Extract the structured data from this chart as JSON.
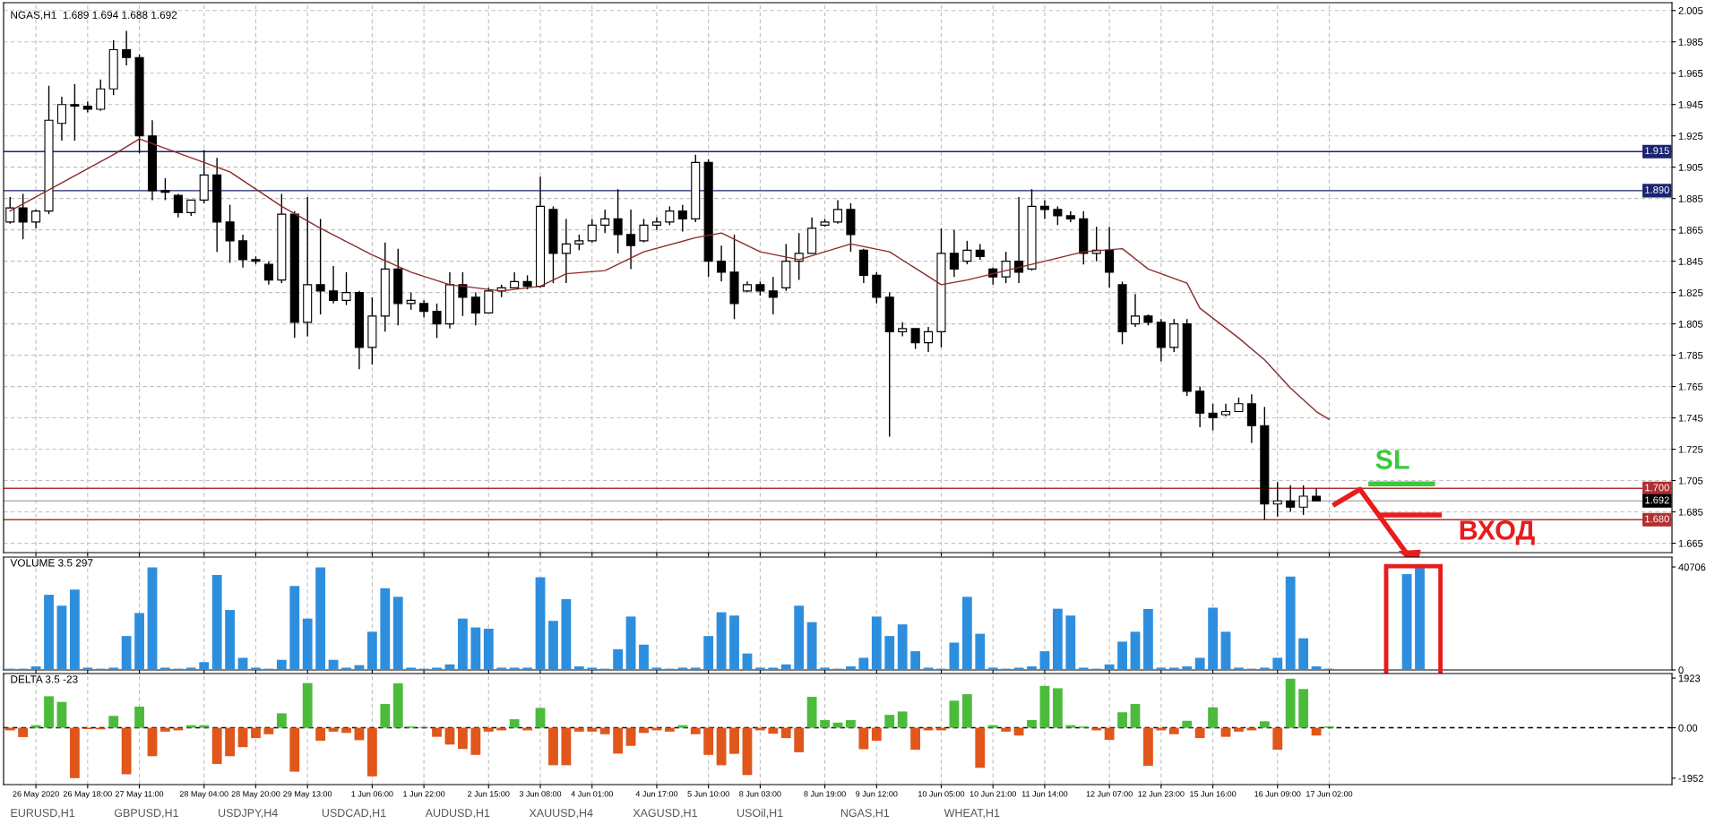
{
  "chart_data": [
    {
      "type": "candlestick",
      "title": "NGAS,H1  1.689 1.694 1.688 1.692",
      "categories": [
        null,
        null,
        null,
        null,
        null,
        null,
        null,
        null,
        null,
        null,
        null,
        null,
        null,
        null,
        null,
        null,
        null,
        null,
        null,
        null,
        null,
        null,
        null,
        null,
        null,
        null,
        null,
        null,
        null,
        null,
        null,
        null,
        null,
        null,
        null,
        null,
        null,
        null,
        null,
        null,
        null,
        null,
        null,
        null,
        null,
        null,
        null,
        null,
        null,
        null,
        null,
        null,
        null,
        null,
        null,
        null,
        null,
        null,
        null,
        null,
        null,
        null,
        null,
        null,
        null,
        null,
        null,
        null,
        null,
        null,
        null,
        null,
        null,
        null,
        null,
        null,
        null,
        null,
        null,
        null,
        null,
        null,
        null,
        null,
        null,
        null,
        null,
        null,
        null,
        null,
        null,
        null,
        null,
        null,
        null,
        null,
        null,
        null,
        null,
        null,
        null,
        null,
        null,
        null,
        null,
        null,
        null,
        null,
        null,
        null,
        null,
        null,
        null,
        null,
        null,
        null,
        null,
        null,
        null,
        null,
        null,
        null,
        null,
        null,
        null,
        null,
        null,
        null,
        null
      ],
      "ohlc": [
        [
          1.87,
          1.886,
          1.869,
          1.879
        ],
        [
          1.879,
          1.888,
          1.859,
          1.87
        ],
        [
          1.87,
          1.878,
          1.866,
          1.877
        ],
        [
          1.877,
          1.957,
          1.875,
          1.935
        ],
        [
          1.933,
          1.95,
          1.922,
          1.945
        ],
        [
          1.945,
          1.958,
          1.922,
          1.944
        ],
        [
          1.944,
          1.947,
          1.94,
          1.942
        ],
        [
          1.942,
          1.961,
          1.941,
          1.955
        ],
        [
          1.955,
          1.986,
          1.951,
          1.98
        ],
        [
          1.98,
          1.992,
          1.97,
          1.975
        ],
        [
          1.975,
          1.977,
          1.914,
          1.925
        ],
        [
          1.925,
          1.935,
          1.884,
          1.89
        ],
        [
          1.89,
          1.898,
          1.884,
          1.889
        ],
        [
          1.887,
          1.888,
          1.873,
          1.876
        ],
        [
          1.876,
          1.884,
          1.874,
          1.884
        ],
        [
          1.884,
          1.916,
          1.882,
          1.9
        ],
        [
          1.9,
          1.911,
          1.851,
          1.87
        ],
        [
          1.87,
          1.881,
          1.844,
          1.858
        ],
        [
          1.858,
          1.862,
          1.841,
          1.846
        ],
        [
          1.846,
          1.848,
          1.843,
          1.845
        ],
        [
          1.843,
          1.845,
          1.83,
          1.833
        ],
        [
          1.833,
          1.888,
          1.831,
          1.875
        ],
        [
          1.875,
          1.877,
          1.796,
          1.806
        ],
        [
          1.806,
          1.886,
          1.797,
          1.83
        ],
        [
          1.83,
          1.872,
          1.811,
          1.826
        ],
        [
          1.826,
          1.842,
          1.818,
          1.82
        ],
        [
          1.82,
          1.838,
          1.817,
          1.825
        ],
        [
          1.825,
          1.826,
          1.776,
          1.79
        ],
        [
          1.79,
          1.822,
          1.779,
          1.81
        ],
        [
          1.81,
          1.857,
          1.8,
          1.84
        ],
        [
          1.84,
          1.853,
          1.804,
          1.818
        ],
        [
          1.818,
          1.825,
          1.814,
          1.82
        ],
        [
          1.818,
          1.82,
          1.809,
          1.813
        ],
        [
          1.813,
          1.818,
          1.796,
          1.805
        ],
        [
          1.805,
          1.838,
          1.802,
          1.83
        ],
        [
          1.83,
          1.838,
          1.81,
          1.822
        ],
        [
          1.822,
          1.825,
          1.804,
          1.812
        ],
        [
          1.812,
          1.828,
          1.812,
          1.826
        ],
        [
          1.826,
          1.83,
          1.822,
          1.828
        ],
        [
          1.828,
          1.838,
          1.828,
          1.832
        ],
        [
          1.832,
          1.836,
          1.827,
          1.829
        ],
        [
          1.829,
          1.899,
          1.828,
          1.88
        ],
        [
          1.878,
          1.88,
          1.831,
          1.85
        ],
        [
          1.85,
          1.872,
          1.831,
          1.856
        ],
        [
          1.856,
          1.862,
          1.852,
          1.858
        ],
        [
          1.858,
          1.872,
          1.857,
          1.868
        ],
        [
          1.868,
          1.878,
          1.863,
          1.872
        ],
        [
          1.872,
          1.891,
          1.85,
          1.862
        ],
        [
          1.862,
          1.878,
          1.84,
          1.855
        ],
        [
          1.858,
          1.872,
          1.857,
          1.868
        ],
        [
          1.868,
          1.873,
          1.865,
          1.87
        ],
        [
          1.87,
          1.88,
          1.868,
          1.877
        ],
        [
          1.877,
          1.881,
          1.864,
          1.872
        ],
        [
          1.872,
          1.913,
          1.87,
          1.908
        ],
        [
          1.908,
          1.91,
          1.835,
          1.845
        ],
        [
          1.845,
          1.855,
          1.832,
          1.838
        ],
        [
          1.838,
          1.862,
          1.808,
          1.818
        ],
        [
          1.826,
          1.832,
          1.825,
          1.83
        ],
        [
          1.83,
          1.832,
          1.823,
          1.826
        ],
        [
          1.826,
          1.835,
          1.811,
          1.822
        ],
        [
          1.828,
          1.856,
          1.826,
          1.845
        ],
        [
          1.845,
          1.863,
          1.833,
          1.85
        ],
        [
          1.85,
          1.873,
          1.85,
          1.866
        ],
        [
          1.868,
          1.872,
          1.867,
          1.87
        ],
        [
          1.87,
          1.884,
          1.869,
          1.878
        ],
        [
          1.878,
          1.882,
          1.851,
          1.862
        ],
        [
          1.852,
          1.853,
          1.831,
          1.836
        ],
        [
          1.836,
          1.838,
          1.818,
          1.822
        ],
        [
          1.822,
          1.825,
          1.733,
          1.8
        ],
        [
          1.8,
          1.806,
          1.797,
          1.802
        ],
        [
          1.802,
          1.802,
          1.789,
          1.793
        ],
        [
          1.793,
          1.803,
          1.787,
          1.8
        ],
        [
          1.8,
          1.866,
          1.79,
          1.85
        ],
        [
          1.85,
          1.865,
          1.835,
          1.84
        ],
        [
          1.845,
          1.858,
          1.843,
          1.852
        ],
        [
          1.852,
          1.856,
          1.846,
          1.848
        ],
        [
          1.84,
          1.841,
          1.83,
          1.835
        ],
        [
          1.835,
          1.851,
          1.831,
          1.845
        ],
        [
          1.845,
          1.886,
          1.831,
          1.838
        ],
        [
          1.84,
          1.891,
          1.839,
          1.88
        ],
        [
          1.88,
          1.884,
          1.872,
          1.878
        ],
        [
          1.878,
          1.88,
          1.868,
          1.874
        ],
        [
          1.874,
          1.877,
          1.87,
          1.872
        ],
        [
          1.872,
          1.877,
          1.843,
          1.85
        ],
        [
          1.85,
          1.867,
          1.845,
          1.852
        ],
        [
          1.852,
          1.867,
          1.828,
          1.838
        ],
        [
          1.83,
          1.832,
          1.792,
          1.8
        ],
        [
          1.805,
          1.824,
          1.803,
          1.81
        ],
        [
          1.81,
          1.811,
          1.804,
          1.806
        ],
        [
          1.806,
          1.808,
          1.781,
          1.79
        ],
        [
          1.79,
          1.808,
          1.787,
          1.805
        ],
        [
          1.805,
          1.808,
          1.759,
          1.762
        ],
        [
          1.762,
          1.765,
          1.739,
          1.748
        ],
        [
          1.748,
          1.754,
          1.737,
          1.745
        ],
        [
          1.747,
          1.754,
          1.746,
          1.749
        ],
        [
          1.749,
          1.758,
          1.749,
          1.754
        ],
        [
          1.754,
          1.76,
          1.729,
          1.74
        ],
        [
          1.74,
          1.752,
          1.68,
          1.69
        ],
        [
          1.69,
          1.704,
          1.682,
          1.692
        ],
        [
          1.692,
          1.702,
          1.685,
          1.688
        ],
        [
          1.688,
          1.702,
          1.683,
          1.695
        ],
        [
          1.695,
          1.7,
          1.692,
          1.692
        ],
        null,
        null,
        null,
        null,
        null,
        null,
        null,
        null,
        null,
        null,
        null,
        null,
        null,
        null,
        null,
        null,
        null,
        null,
        null,
        null,
        null,
        null,
        null,
        null,
        null,
        null,
        null
      ],
      "series": [
        {
          "type": "line",
          "color": "#8b2a2a",
          "values": [
            1.877,
            null,
            null,
            null,
            1.895,
            null,
            null,
            null,
            1.913,
            null,
            1.923,
            null,
            1.917,
            null,
            null,
            1.908,
            null,
            1.902,
            null,
            null,
            null,
            1.88,
            null,
            null,
            1.866,
            null,
            null,
            null,
            1.849,
            null,
            null,
            1.838,
            null,
            null,
            1.83,
            null,
            null,
            null,
            1.826,
            null,
            null,
            1.829,
            null,
            1.837,
            null,
            null,
            1.839,
            null,
            null,
            1.851,
            null,
            null,
            null,
            1.86,
            null,
            1.863,
            null,
            null,
            1.851,
            null,
            null,
            1.846,
            null,
            null,
            null,
            1.856,
            null,
            null,
            1.851,
            null,
            null,
            null,
            1.83,
            null,
            1.833,
            null,
            null,
            null,
            null,
            1.843,
            null,
            null,
            null,
            1.851,
            null,
            null,
            1.853,
            null,
            1.84,
            null,
            null,
            1.831,
            1.815,
            null,
            null,
            1.796,
            null,
            1.782,
            null,
            1.764,
            null,
            1.749,
            1.744,
            null,
            null,
            null,
            null,
            null,
            null,
            null,
            null,
            null,
            null,
            null,
            null,
            null,
            null,
            null,
            null,
            null,
            null,
            null,
            null,
            null,
            null,
            null,
            null,
            null,
            null
          ]
        }
      ],
      "ylim": [
        1.659,
        2.01
      ],
      "yticks": [
        1.665,
        1.685,
        1.705,
        1.725,
        1.745,
        1.765,
        1.785,
        1.805,
        1.825,
        1.845,
        1.865,
        1.885,
        1.905,
        1.925,
        1.945,
        1.965,
        1.985,
        2.005
      ],
      "tick_labels": "y",
      "grid": true,
      "ref_lines": [
        {
          "axis": "y",
          "value": 1.915,
          "label": "1.915",
          "color": "#1c2470"
        },
        {
          "axis": "y",
          "value": 1.89,
          "label": "1.890",
          "color": "#1c2470"
        },
        {
          "axis": "y",
          "value": 1.7,
          "label": "1.700",
          "color": "#b03030"
        },
        {
          "axis": "y",
          "value": 1.692,
          "label": "1.692",
          "color": "#b4b4b4"
        },
        {
          "axis": "y",
          "value": 1.68,
          "label": "1.680",
          "color": "#b03030"
        }
      ],
      "annotations": [
        "SL",
        {
          "text": "ВХОД",
          "y": 1.68
        }
      ]
    },
    {
      "type": "bar",
      "title": "VOLUME 3.5 297",
      "categories": [
        null,
        null,
        null,
        null,
        null,
        null,
        null,
        null,
        null,
        null,
        null,
        null,
        null,
        null,
        null,
        null,
        null,
        null,
        null,
        null,
        null,
        null,
        null,
        null,
        null,
        null,
        null,
        null,
        null,
        null,
        null,
        null,
        null,
        null,
        null,
        null,
        null,
        null,
        null,
        null,
        null,
        null,
        null,
        null,
        null,
        null,
        null,
        null,
        null,
        null,
        null,
        null,
        null,
        null,
        null,
        null,
        null,
        null,
        null,
        null,
        null,
        null,
        null,
        null,
        null,
        null,
        null,
        null,
        null,
        null,
        null,
        null,
        null,
        null,
        null,
        null,
        null,
        null,
        null,
        null,
        null,
        null,
        null,
        null,
        null,
        null,
        null,
        null,
        null,
        null,
        null,
        null,
        null,
        null,
        null,
        null,
        null,
        null,
        null,
        null,
        null,
        null,
        null,
        null,
        null,
        null,
        null,
        null,
        null,
        null,
        null,
        null,
        null,
        null,
        null,
        null,
        null,
        null,
        null,
        null,
        null,
        null,
        null,
        null,
        null,
        null,
        null,
        null,
        null
      ],
      "series": [
        {
          "color": "#2e8ede",
          "values": [
            500,
            500,
            1400,
            29700,
            25400,
            31800,
            900,
            500,
            900,
            13400,
            22500,
            40500,
            900,
            500,
            900,
            3100,
            37500,
            23700,
            4800,
            900,
            500,
            4000,
            33200,
            20300,
            40500,
            4000,
            900,
            1900,
            15100,
            32300,
            28900,
            900,
            500,
            900,
            2200,
            20300,
            16800,
            16300,
            900,
            900,
            900,
            36600,
            19400,
            28000,
            1400,
            900,
            500,
            8200,
            21100,
            10000,
            900,
            500,
            900,
            900,
            13400,
            22800,
            21500,
            6500,
            900,
            900,
            2200,
            25400,
            18900,
            900,
            500,
            1400,
            4800,
            21100,
            13400,
            18000,
            7400,
            900,
            500,
            10800,
            28900,
            14300,
            900,
            500,
            900,
            1400,
            7400,
            24200,
            21500,
            900,
            500,
            2200,
            11200,
            15100,
            24100,
            900,
            900,
            1400,
            4800,
            24600,
            15100,
            900,
            500,
            900,
            4800,
            36900,
            12500,
            1400,
            500,
            null,
            null,
            null,
            null,
            null,
            37900,
            40700,
            null,
            null,
            null,
            null,
            null,
            null,
            null,
            null,
            null,
            null,
            null,
            null,
            null,
            null,
            null,
            null,
            null,
            null,
            null
          ]
        }
      ],
      "ylim": [
        0,
        44600
      ],
      "yticks": [
        40706,
        0
      ],
      "tick_labels": "y",
      "grid": "x"
    },
    {
      "type": "bar",
      "title": "DELTA 3.5 -23",
      "categories": [
        null,
        null,
        "26 May 2020",
        null,
        null,
        null,
        "26 May 18:00",
        null,
        null,
        null,
        "27 May 11:00",
        null,
        null,
        null,
        null,
        "28 May 04:00",
        null,
        null,
        null,
        "28 May 20:00",
        null,
        null,
        null,
        "29 May 13:00",
        null,
        null,
        null,
        null,
        "1 Jun 06:00",
        null,
        null,
        null,
        "1 Jun 22:00",
        null,
        null,
        null,
        null,
        "2 Jun 15:00",
        null,
        null,
        null,
        "3 Jun 08:00",
        null,
        null,
        null,
        "4 Jun 01:00",
        null,
        null,
        null,
        null,
        "4 Jun 17:00",
        null,
        null,
        null,
        "5 Jun 10:00",
        null,
        null,
        null,
        "8 Jun 03:00",
        null,
        null,
        null,
        null,
        "8 Jun 19:00",
        null,
        null,
        null,
        "9 Jun 12:00",
        null,
        null,
        null,
        null,
        "10 Jun 05:00",
        null,
        null,
        null,
        "10 Jun 21:00",
        null,
        null,
        null,
        "11 Jun 14:00",
        null,
        null,
        null,
        null,
        "12 Jun 07:00",
        null,
        null,
        null,
        "12 Jun 23:00",
        null,
        null,
        null,
        "15 Jun 16:00",
        null,
        null,
        null,
        null,
        "16 Jun 09:00",
        null,
        null,
        null,
        "17 Jun 02:00",
        null,
        null,
        null,
        null,
        null,
        null,
        null,
        null,
        null,
        null,
        null,
        null,
        null,
        null,
        null,
        null,
        null,
        null,
        null,
        null,
        null,
        null,
        null,
        null,
        null,
        null
      ],
      "values": [
        -100,
        -360,
        100,
        1220,
        1000,
        -1950,
        -50,
        -60,
        460,
        -1800,
        820,
        -1100,
        -150,
        -100,
        100,
        100,
        -1400,
        -1100,
        -750,
        -400,
        -250,
        560,
        -1700,
        1730,
        -500,
        -150,
        -200,
        -480,
        -1880,
        920,
        1720,
        50,
        30,
        -350,
        -650,
        -820,
        -1050,
        -150,
        -100,
        330,
        -100,
        770,
        -1450,
        -1450,
        -150,
        -150,
        -250,
        -1000,
        -700,
        -200,
        -100,
        -150,
        100,
        -250,
        -1050,
        -1450,
        -1010,
        -1830,
        -100,
        -230,
        -400,
        -950,
        1200,
        300,
        200,
        300,
        -830,
        -500,
        500,
        630,
        -850,
        -100,
        -100,
        1050,
        1300,
        -1550,
        100,
        -150,
        -300,
        300,
        1620,
        1530,
        100,
        50,
        -100,
        -470,
        600,
        920,
        -1470,
        -100,
        -250,
        270,
        -400,
        790,
        -350,
        -150,
        -100,
        250,
        -850,
        1900,
        1500,
        -300,
        50,
        null,
        null,
        null,
        null,
        null,
        null,
        null,
        null,
        null,
        null,
        null,
        null,
        null,
        null,
        null,
        null,
        null,
        null,
        null,
        null,
        null,
        null,
        null,
        null,
        null,
        null
      ],
      "colors": [
        "#e0561b",
        "#e0561b",
        "#4cbb3c",
        "#4cbb3c",
        "#4cbb3c",
        "#e0561b",
        "#e0561b",
        "#e0561b",
        "#4cbb3c",
        "#e0561b",
        "#4cbb3c",
        "#e0561b",
        "#e0561b",
        "#e0561b",
        "#4cbb3c",
        "#4cbb3c",
        "#e0561b",
        "#e0561b",
        "#e0561b",
        "#e0561b",
        "#e0561b",
        "#4cbb3c",
        "#e0561b",
        "#4cbb3c",
        "#e0561b",
        "#e0561b",
        "#e0561b",
        "#e0561b",
        "#e0561b",
        "#4cbb3c",
        "#4cbb3c",
        "#4cbb3c",
        "#4cbb3c",
        "#e0561b",
        "#e0561b",
        "#e0561b",
        "#e0561b",
        "#e0561b",
        "#e0561b",
        "#4cbb3c",
        "#e0561b",
        "#4cbb3c",
        "#e0561b",
        "#e0561b",
        "#e0561b",
        "#e0561b",
        "#e0561b",
        "#e0561b",
        "#e0561b",
        "#e0561b",
        "#e0561b",
        "#e0561b",
        "#4cbb3c",
        "#e0561b",
        "#e0561b",
        "#e0561b",
        "#e0561b",
        "#e0561b",
        "#e0561b",
        "#e0561b",
        "#e0561b",
        "#e0561b",
        "#4cbb3c",
        "#4cbb3c",
        "#4cbb3c",
        "#4cbb3c",
        "#e0561b",
        "#e0561b",
        "#4cbb3c",
        "#4cbb3c",
        "#e0561b",
        "#e0561b",
        "#e0561b",
        "#4cbb3c",
        "#4cbb3c",
        "#e0561b",
        "#4cbb3c",
        "#e0561b",
        "#e0561b",
        "#4cbb3c",
        "#4cbb3c",
        "#4cbb3c",
        "#4cbb3c",
        "#4cbb3c",
        "#e0561b",
        "#e0561b",
        "#4cbb3c",
        "#4cbb3c",
        "#e0561b",
        "#e0561b",
        "#e0561b",
        "#4cbb3c",
        "#e0561b",
        "#4cbb3c",
        "#e0561b",
        "#e0561b",
        "#e0561b",
        "#4cbb3c",
        "#e0561b",
        "#4cbb3c",
        "#4cbb3c",
        "#e0561b",
        "#4cbb3c",
        "#4cbb3c",
        "#4cbb3c",
        "#4cbb3c",
        "#4cbb3c",
        "#4cbb3c",
        "#4cbb3c",
        "#4cbb3c",
        "#4cbb3c",
        "#4cbb3c",
        "#4cbb3c",
        "#4cbb3c",
        "#4cbb3c",
        "#4cbb3c",
        "#4cbb3c",
        "#4cbb3c",
        "#4cbb3c",
        "#4cbb3c",
        "#4cbb3c",
        "#4cbb3c",
        "#4cbb3c",
        "#4cbb3c",
        "#4cbb3c",
        "#4cbb3c",
        "#4cbb3c",
        "#4cbb3c",
        "#4cbb3c"
      ],
      "ylim": [
        -2200,
        2100
      ],
      "yticks": [
        1923,
        {
          "value": 0,
          "label": "0.00"
        },
        -1952
      ],
      "grid": "x",
      "ref_lines": [
        {
          "axis": "y",
          "value": 0,
          "color": "#000000",
          "line_style": "dashed"
        }
      ],
      "annotations": [
        "EURUSD,H1",
        "GBPUSD,H1",
        "USDJPY,H4",
        "USDCAD,H1",
        "AUDUSD,H1",
        "XAUUSD,H4",
        "XAGUSD,H1",
        "USOil,H1",
        "NGAS,H1",
        "WHEAT,H1"
      ]
    }
  ]
}
